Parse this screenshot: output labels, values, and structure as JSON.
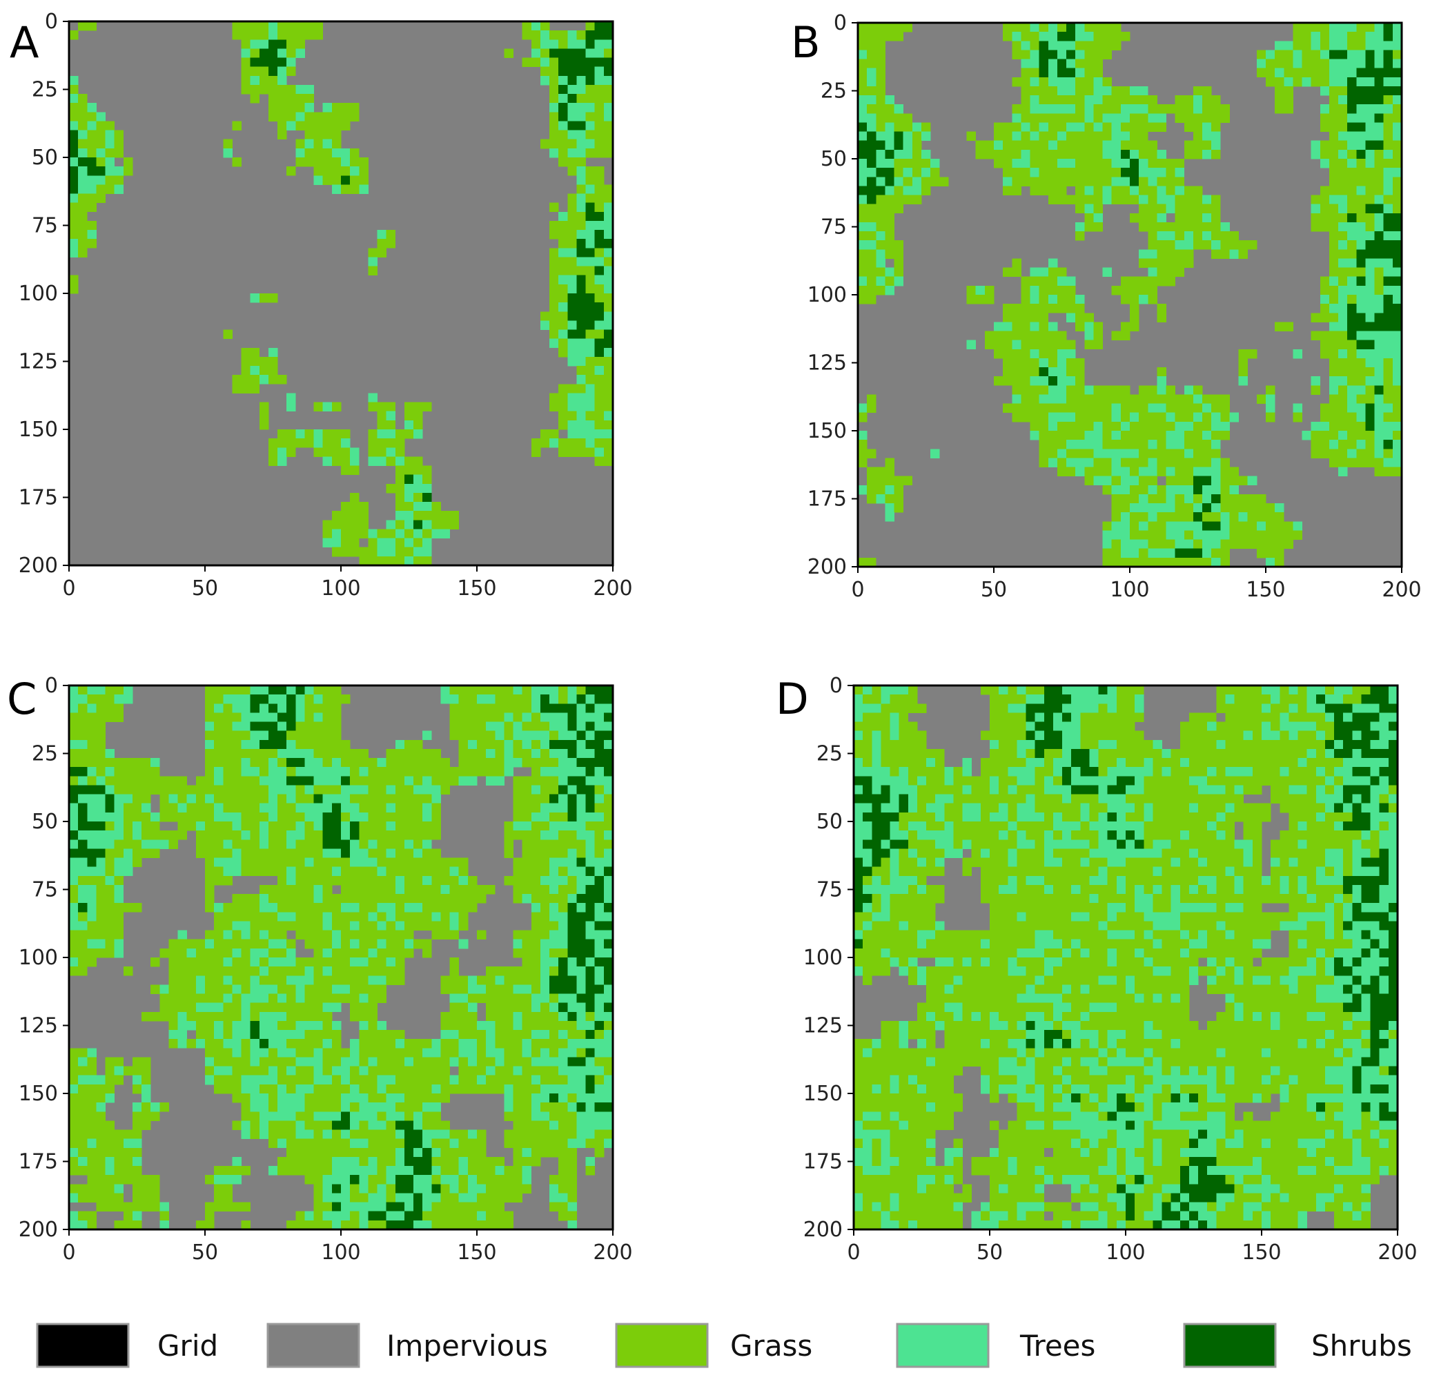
{
  "chart_data": {
    "type": "heatmap",
    "categories_legend": [
      {
        "label": "Grid",
        "color": "#000000"
      },
      {
        "label": "Impervious",
        "color": "#808080"
      },
      {
        "label": "Grass",
        "color": "#7ccd0a"
      },
      {
        "label": "Trees",
        "color": "#4de392"
      },
      {
        "label": "Shrubs",
        "color": "#016400"
      }
    ],
    "panels": [
      {
        "label": "A",
        "cover": {
          "Impervious": 0.68,
          "Grass": 0.14,
          "Trees": 0.09,
          "Shrubs": 0.09
        }
      },
      {
        "label": "B",
        "cover": {
          "Impervious": 0.47,
          "Grass": 0.22,
          "Trees": 0.14,
          "Shrubs": 0.17
        }
      },
      {
        "label": "C",
        "cover": {
          "Impervious": 0.3,
          "Grass": 0.32,
          "Trees": 0.18,
          "Shrubs": 0.2
        }
      },
      {
        "label": "D",
        "cover": {
          "Impervious": 0.16,
          "Grass": 0.36,
          "Trees": 0.23,
          "Shrubs": 0.25
        }
      }
    ],
    "xticks": [
      0,
      50,
      100,
      150,
      200
    ],
    "yticks": [
      0,
      25,
      50,
      75,
      100,
      125,
      150,
      175,
      200
    ],
    "xlim": [
      0,
      200
    ],
    "ylim": [
      200,
      0
    ],
    "grid_size": 200
  }
}
